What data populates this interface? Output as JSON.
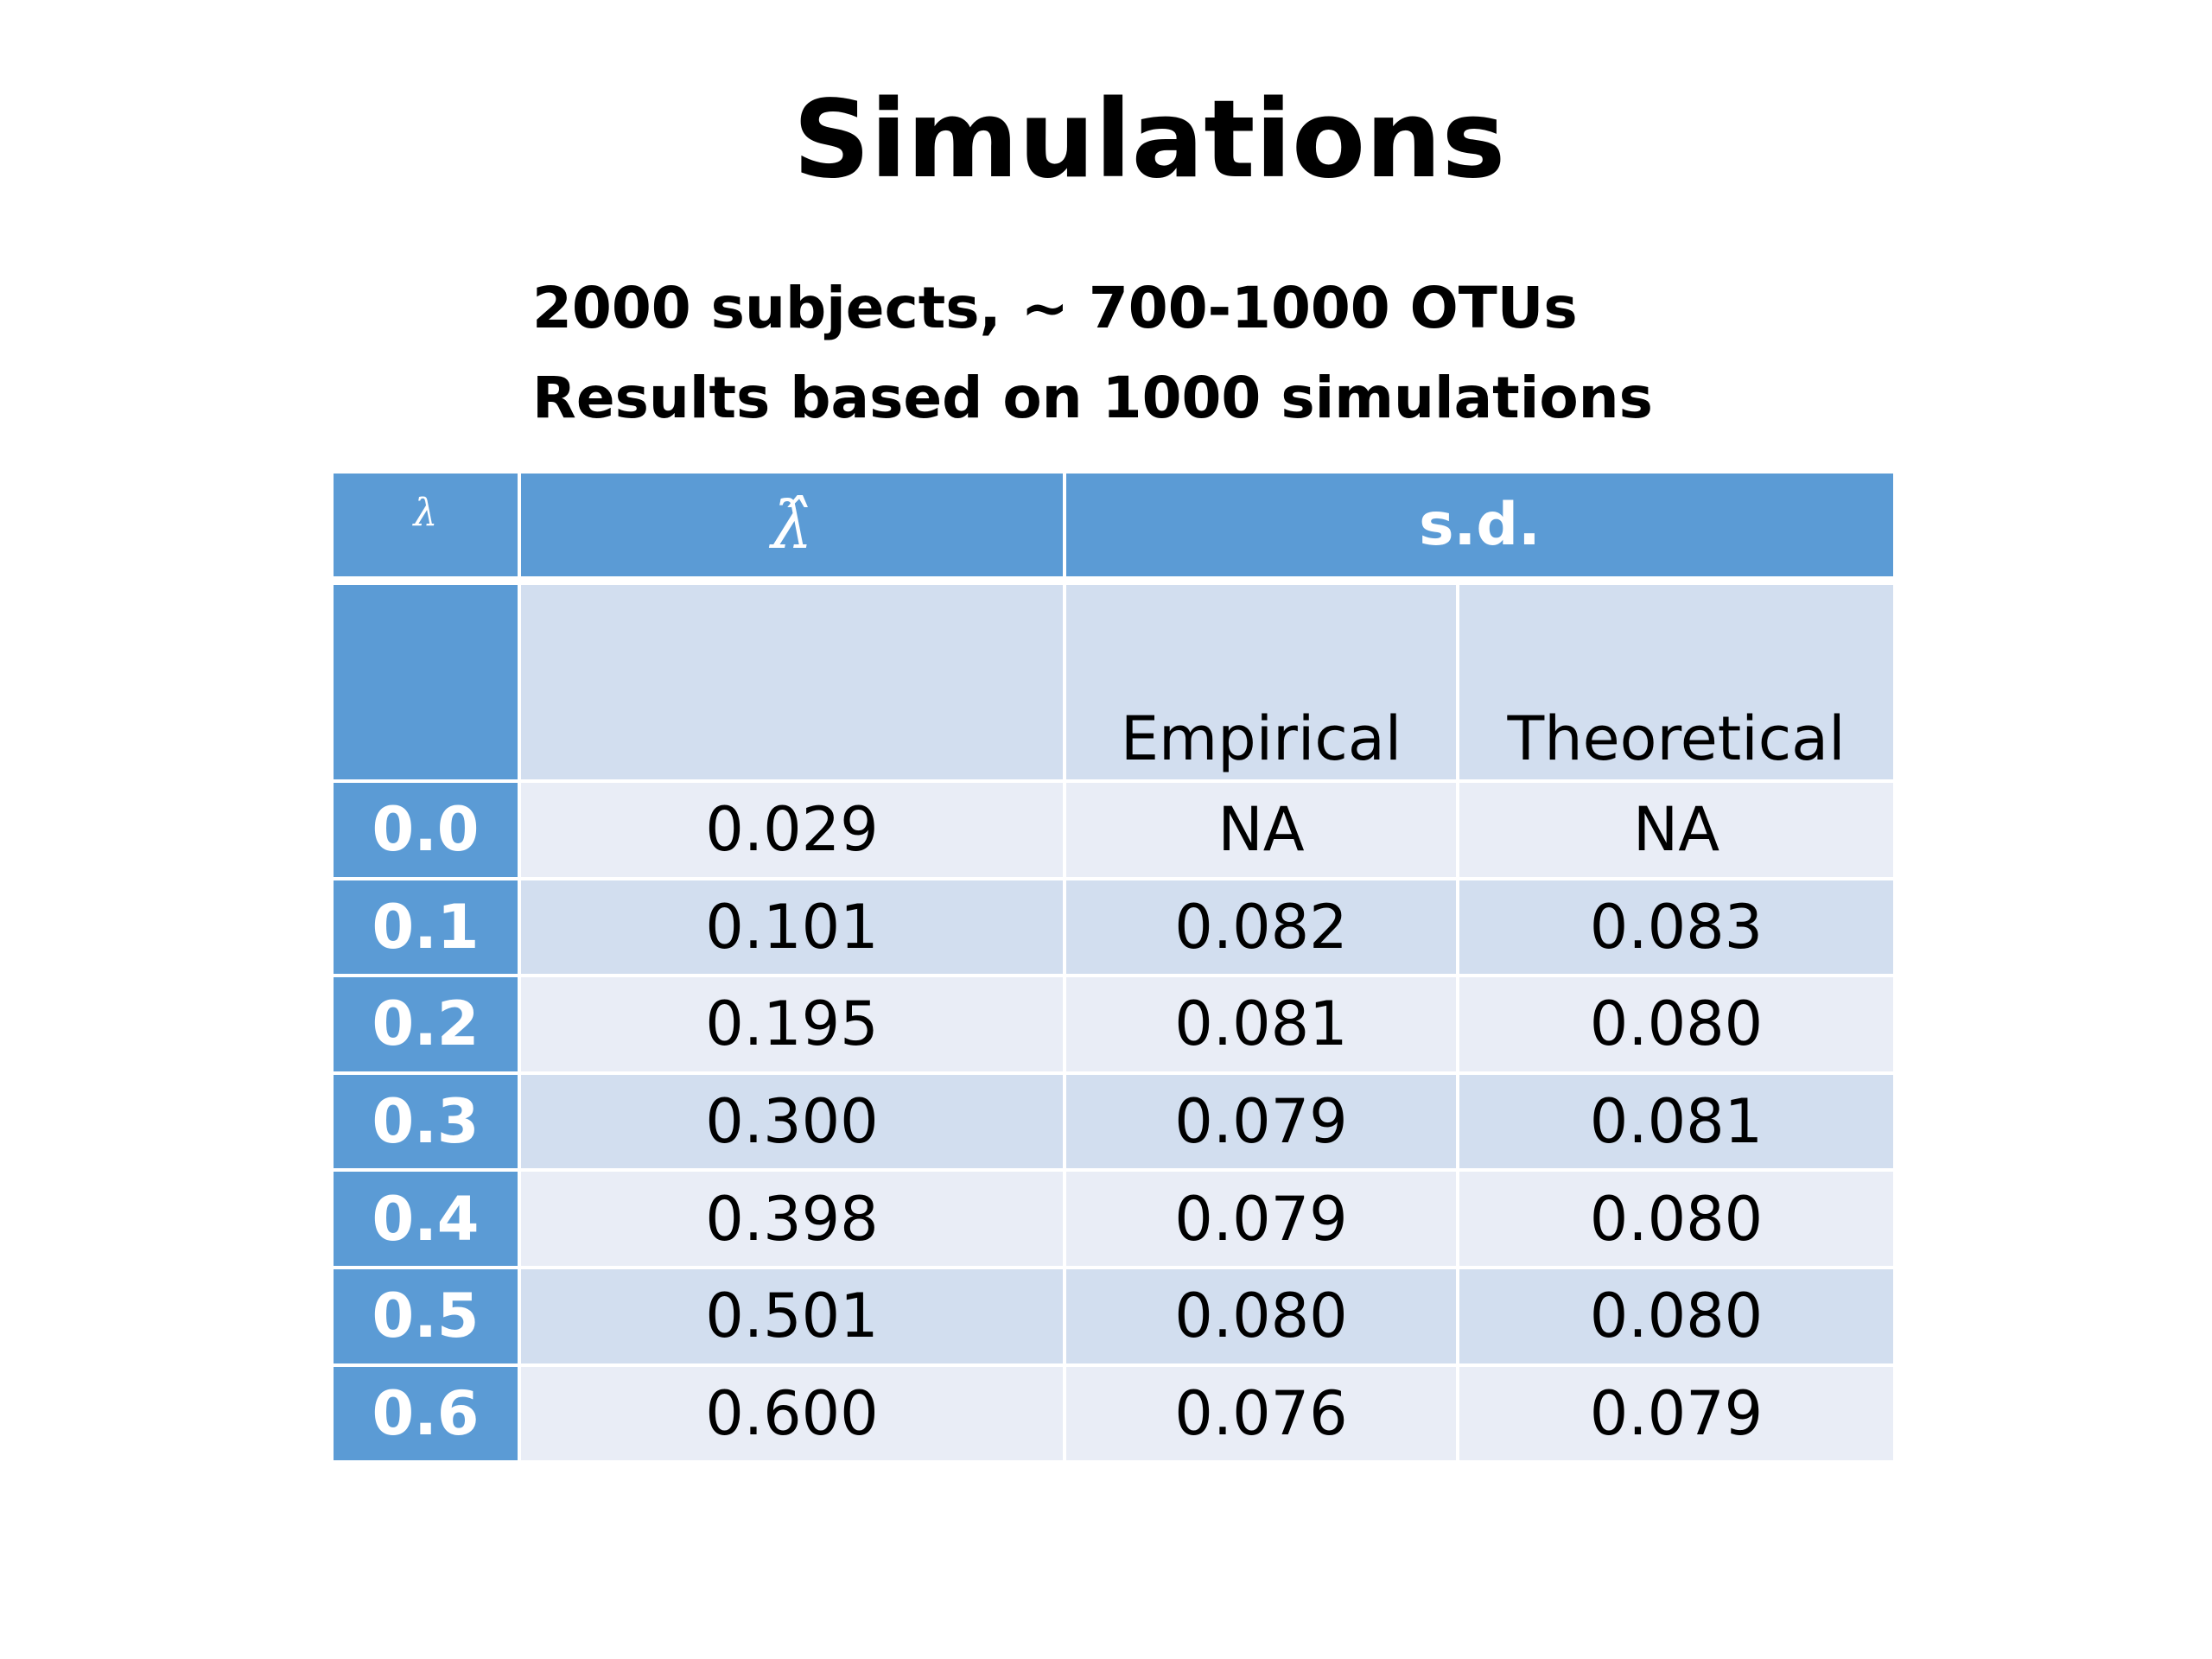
{
  "header": {
    "title": "Simulations",
    "subtitle_lines": [
      "2000 subjects, ~ 700-1000 OTUs",
      "Results based on 1000 simulations"
    ]
  },
  "table": {
    "header_row": [
      "λ",
      "λ̂",
      "s.d."
    ],
    "subheader_row": [
      "Empirical",
      "Theoretical"
    ],
    "rows": [
      [
        "0.0",
        "0.029",
        "NA",
        "NA"
      ],
      [
        "0.1",
        "0.101",
        "0.082",
        "0.083"
      ],
      [
        "0.2",
        "0.195",
        "0.081",
        "0.080"
      ],
      [
        "0.3",
        "0.300",
        "0.079",
        "0.081"
      ],
      [
        "0.4",
        "0.398",
        "0.079",
        "0.080"
      ],
      [
        "0.5",
        "0.501",
        "0.080",
        "0.080"
      ],
      [
        "0.6",
        "0.600",
        "0.076",
        "0.079"
      ]
    ]
  }
}
